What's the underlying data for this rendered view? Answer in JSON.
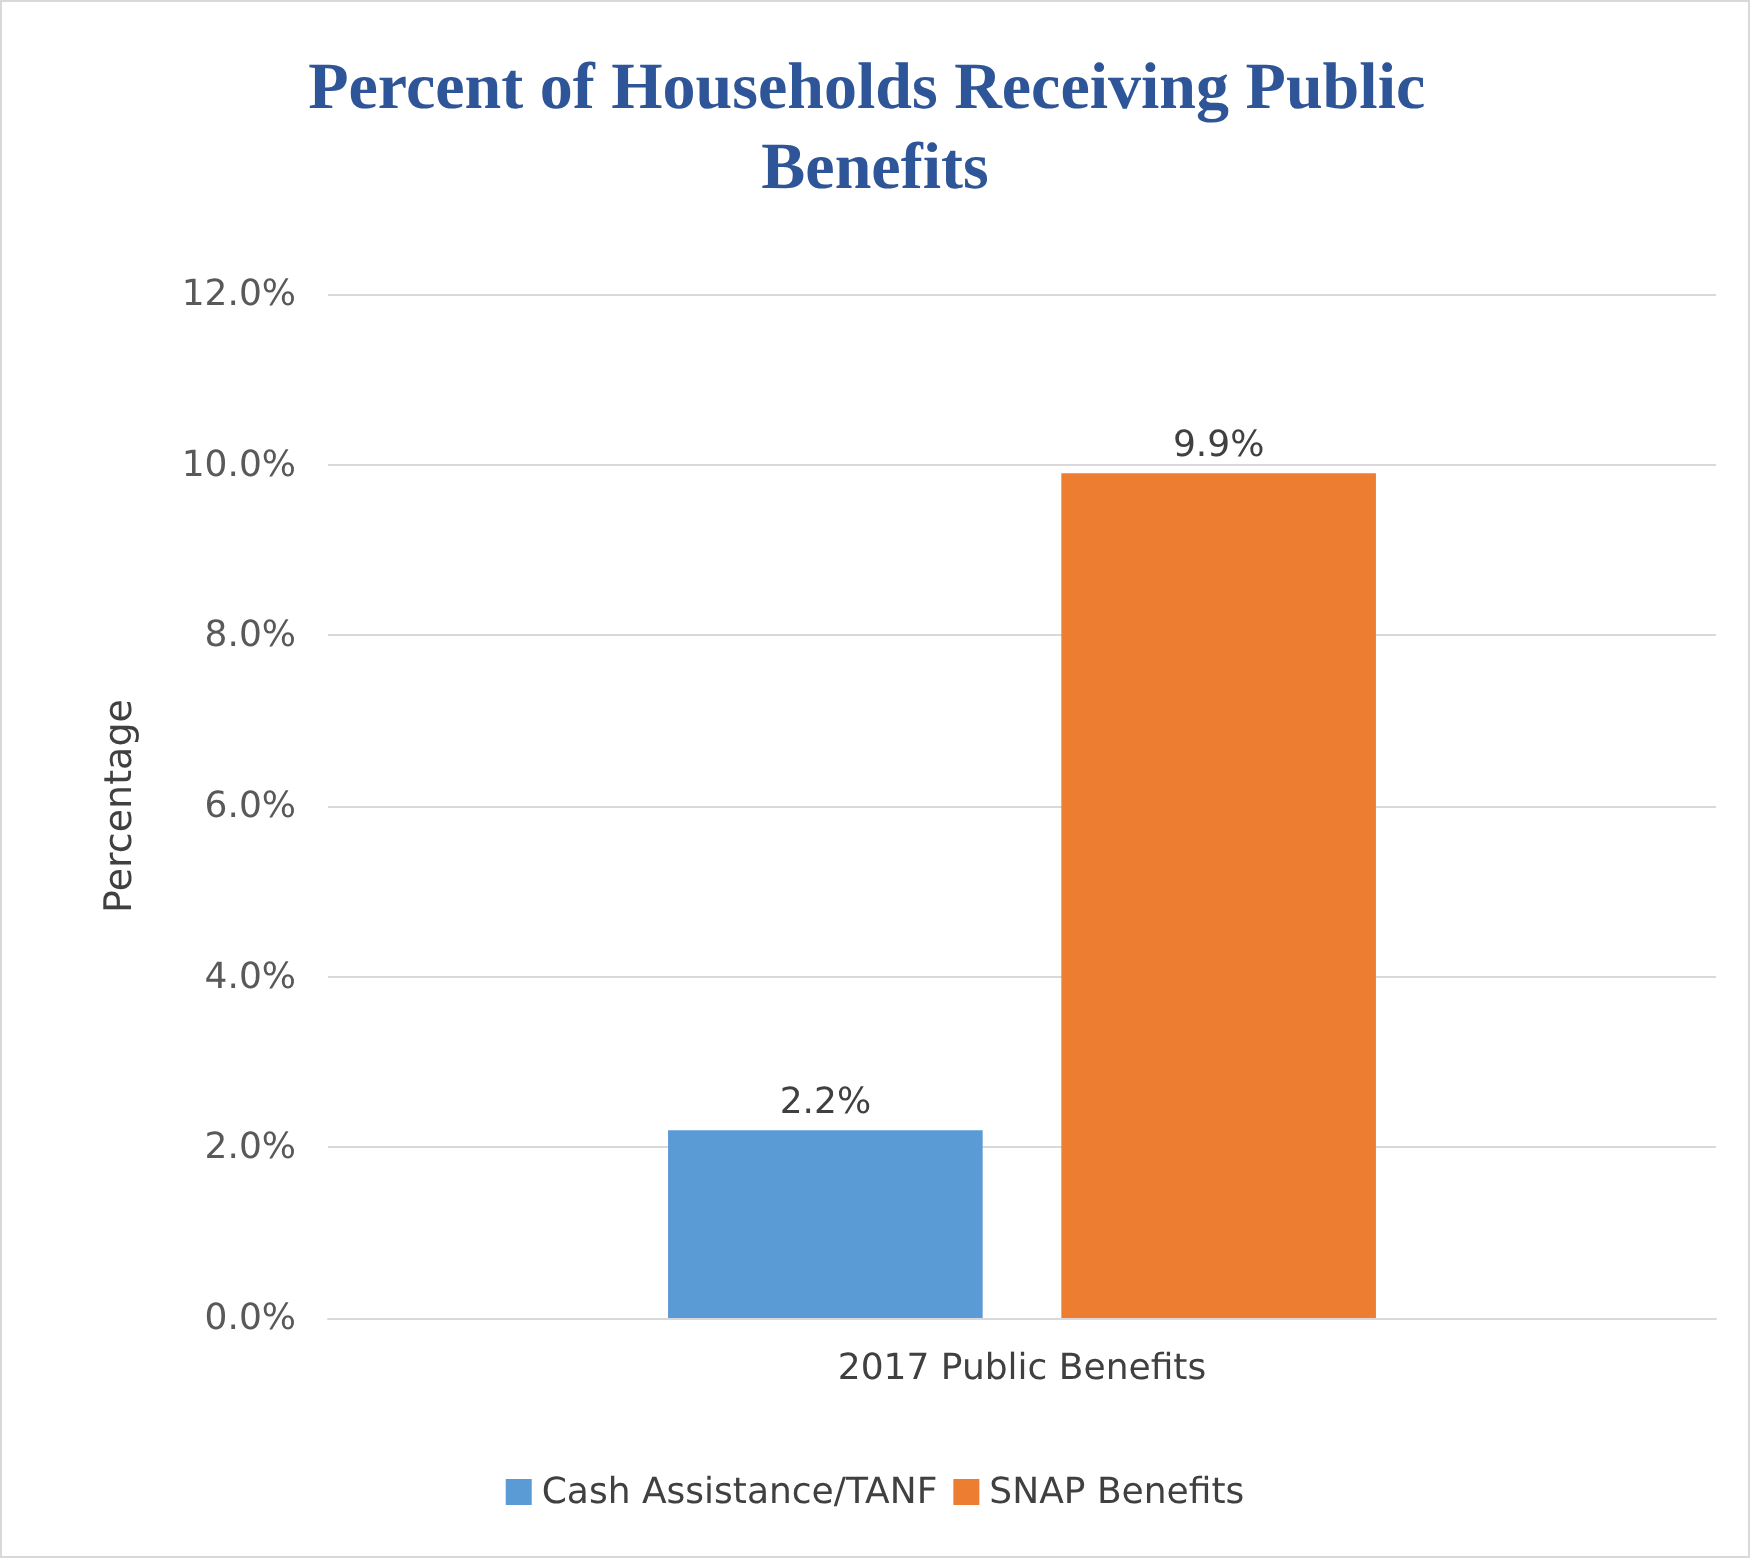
{
  "chart_data": {
    "type": "bar",
    "title": "Percent of Households Receiving Public Benefits",
    "ylabel": "Percentage",
    "categories": [
      "2017 Public Benefits"
    ],
    "series": [
      {
        "name": "Cash Assistance/TANF",
        "color": "#5b9bd5",
        "values": [
          2.2
        ],
        "value_labels": [
          "2.2%"
        ]
      },
      {
        "name": "SNAP Benefits",
        "color": "#ed7d31",
        "values": [
          9.9
        ],
        "value_labels": [
          "9.9%"
        ]
      }
    ],
    "ylim": [
      0,
      12
    ],
    "yticks": [
      {
        "value": 0,
        "label": "0.0%"
      },
      {
        "value": 2,
        "label": "2.0%"
      },
      {
        "value": 4,
        "label": "4.0%"
      },
      {
        "value": 6,
        "label": "6.0%"
      },
      {
        "value": 8,
        "label": "8.0%"
      },
      {
        "value": 10,
        "label": "10.0%"
      },
      {
        "value": 12,
        "label": "12.0%"
      }
    ],
    "grid": "y",
    "legend": "bottom"
  }
}
